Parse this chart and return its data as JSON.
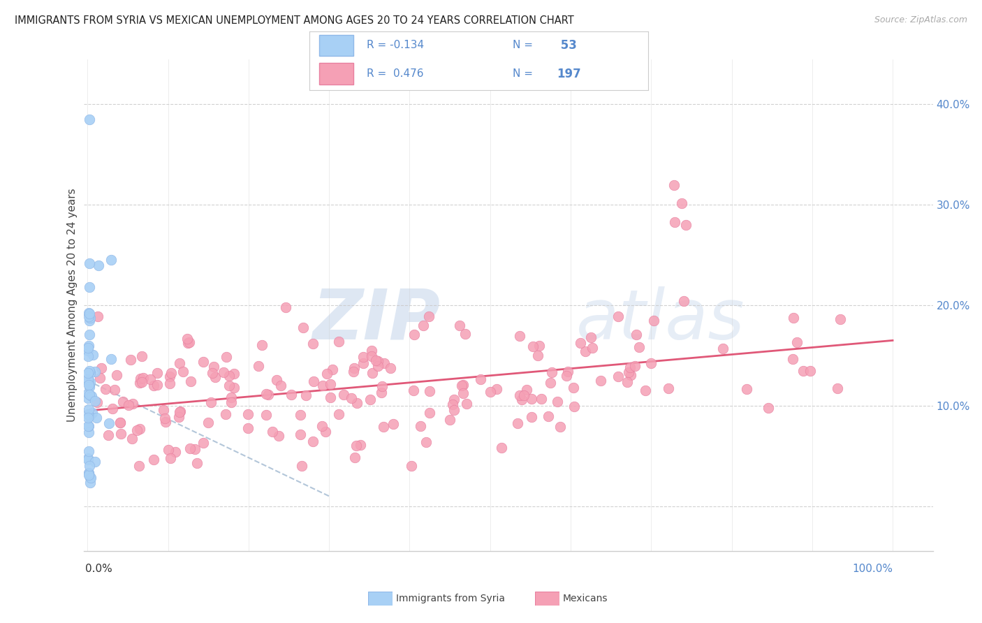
{
  "title": "IMMIGRANTS FROM SYRIA VS MEXICAN UNEMPLOYMENT AMONG AGES 20 TO 24 YEARS CORRELATION CHART",
  "source": "Source: ZipAtlas.com",
  "ylabel": "Unemployment Among Ages 20 to 24 years",
  "ytick_values": [
    0.0,
    0.1,
    0.2,
    0.3,
    0.4
  ],
  "ytick_labels": [
    "",
    "10.0%",
    "20.0%",
    "30.0%",
    "40.0%"
  ],
  "xtick_values": [
    0.0,
    0.1,
    0.2,
    0.3,
    0.4,
    0.5,
    0.6,
    0.7,
    0.8,
    0.9,
    1.0
  ],
  "xlim": [
    -0.005,
    1.05
  ],
  "ylim": [
    -0.045,
    0.445
  ],
  "legend_row1_r": "R = -0.134",
  "legend_row1_n": "N =",
  "legend_row1_nval": "53",
  "legend_row2_r": "R =  0.476",
  "legend_row2_n": "N =",
  "legend_row2_nval": "197",
  "color_syria": "#a8d0f5",
  "color_syria_edge": "#90b8e8",
  "color_mexico": "#f5a0b5",
  "color_mexico_edge": "#e880a0",
  "color_trendline_syria": "#a0b8d0",
  "color_trendline_mexico": "#e05878",
  "color_grid": "#cccccc",
  "color_ytick": "#5588cc",
  "color_xtick_label": "#333333",
  "color_xlabel_right": "#5588cc",
  "color_title": "#222222",
  "color_source": "#aaaaaa",
  "color_ylabel": "#444444",
  "watermark_zip_color": "#c8d8ec",
  "watermark_atlas_color": "#c8d8ec",
  "legend_border_color": "#cccccc",
  "bottom_legend_label1": "Immigrants from Syria",
  "bottom_legend_label2": "Mexicans"
}
